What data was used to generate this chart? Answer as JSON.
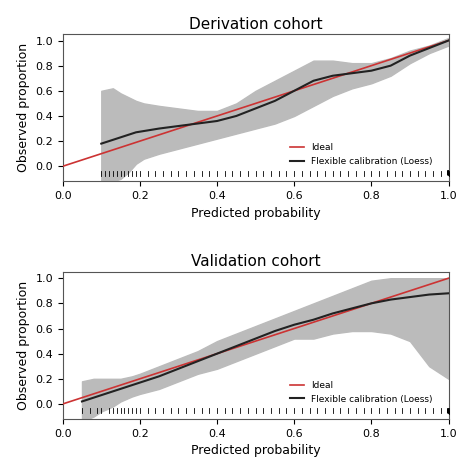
{
  "title1": "Derivation cohort",
  "title2": "Validation cohort",
  "xlabel": "Predicted probability",
  "ylabel": "Observed proportion",
  "xlim": [
    0.0,
    1.0
  ],
  "ylim": [
    -0.1,
    1.0
  ],
  "ideal_color": "#cc3333",
  "loess_color": "#222222",
  "ci_color": "#bbbbbb",
  "legend_ideal": "Ideal",
  "legend_loess": "Flexible calibration (Loess)",
  "bg_color": "#ffffff",
  "derivation": {
    "loess_x": [
      0.1,
      0.13,
      0.15,
      0.17,
      0.19,
      0.21,
      0.25,
      0.3,
      0.35,
      0.4,
      0.45,
      0.5,
      0.55,
      0.6,
      0.65,
      0.7,
      0.75,
      0.8,
      0.85,
      0.9,
      0.95,
      1.0
    ],
    "loess_y": [
      0.18,
      0.21,
      0.23,
      0.25,
      0.27,
      0.28,
      0.3,
      0.32,
      0.34,
      0.36,
      0.4,
      0.46,
      0.52,
      0.6,
      0.68,
      0.72,
      0.74,
      0.76,
      0.8,
      0.88,
      0.94,
      1.0
    ],
    "ci_upper": [
      0.6,
      0.62,
      0.58,
      0.55,
      0.52,
      0.5,
      0.48,
      0.46,
      0.44,
      0.44,
      0.5,
      0.6,
      0.68,
      0.76,
      0.84,
      0.84,
      0.82,
      0.82,
      0.86,
      0.92,
      0.96,
      1.02
    ],
    "ci_lower": [
      -0.12,
      -0.12,
      -0.1,
      -0.05,
      0.02,
      0.06,
      0.1,
      0.14,
      0.18,
      0.22,
      0.26,
      0.3,
      0.34,
      0.4,
      0.48,
      0.56,
      0.62,
      0.66,
      0.72,
      0.82,
      0.9,
      0.96
    ],
    "rug_x": [
      0.1,
      0.11,
      0.12,
      0.13,
      0.14,
      0.15,
      0.16,
      0.17,
      0.18,
      0.19,
      0.2,
      0.22,
      0.24,
      0.26,
      0.28,
      0.3,
      0.32,
      0.34,
      0.36,
      0.38,
      0.4,
      0.42,
      0.44,
      0.46,
      0.48,
      0.5,
      0.52,
      0.54,
      0.56,
      0.58,
      0.6,
      0.62,
      0.64,
      0.66,
      0.68,
      0.7,
      0.72,
      0.74,
      0.76,
      0.78,
      0.8,
      0.82,
      0.84,
      0.86,
      0.88,
      0.9,
      0.92,
      0.94,
      0.96,
      0.98,
      1.0
    ]
  },
  "validation": {
    "loess_x": [
      0.05,
      0.08,
      0.1,
      0.13,
      0.15,
      0.18,
      0.2,
      0.25,
      0.3,
      0.35,
      0.4,
      0.45,
      0.5,
      0.55,
      0.6,
      0.65,
      0.7,
      0.75,
      0.8,
      0.85,
      0.9,
      0.95,
      1.0
    ],
    "loess_y": [
      0.02,
      0.05,
      0.07,
      0.1,
      0.12,
      0.15,
      0.17,
      0.22,
      0.28,
      0.34,
      0.4,
      0.46,
      0.52,
      0.58,
      0.63,
      0.67,
      0.72,
      0.76,
      0.8,
      0.83,
      0.85,
      0.87,
      0.88
    ],
    "ci_upper": [
      0.18,
      0.2,
      0.2,
      0.2,
      0.2,
      0.22,
      0.24,
      0.3,
      0.36,
      0.42,
      0.5,
      0.56,
      0.62,
      0.68,
      0.74,
      0.8,
      0.86,
      0.92,
      0.98,
      1.0,
      1.0,
      1.0,
      1.0
    ],
    "ci_lower": [
      -0.14,
      -0.1,
      -0.06,
      -0.02,
      0.02,
      0.06,
      0.08,
      0.12,
      0.18,
      0.24,
      0.28,
      0.34,
      0.4,
      0.46,
      0.52,
      0.52,
      0.56,
      0.58,
      0.58,
      0.56,
      0.5,
      0.3,
      0.2
    ],
    "rug_x": [
      0.05,
      0.07,
      0.09,
      0.1,
      0.12,
      0.13,
      0.14,
      0.15,
      0.16,
      0.17,
      0.18,
      0.19,
      0.2,
      0.22,
      0.24,
      0.26,
      0.28,
      0.3,
      0.32,
      0.34,
      0.36,
      0.38,
      0.4,
      0.42,
      0.44,
      0.46,
      0.48,
      0.5,
      0.52,
      0.54,
      0.56,
      0.58,
      0.6,
      0.62,
      0.64,
      0.66,
      0.68,
      0.7,
      0.72,
      0.74,
      0.76,
      0.78,
      0.8,
      0.82,
      0.84,
      0.86,
      0.88,
      0.9,
      0.92,
      0.94,
      0.96,
      0.98,
      1.0
    ]
  },
  "tick_fontsize": 8,
  "label_fontsize": 9,
  "title_fontsize": 11
}
